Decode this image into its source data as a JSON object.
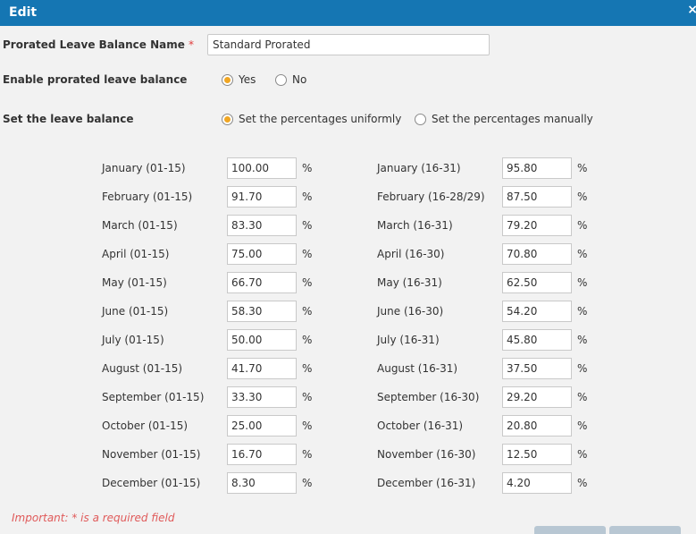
{
  "dialog": {
    "title": "Edit",
    "close_glyph": "×"
  },
  "form": {
    "name_label": "Prorated Leave Balance Name",
    "required_mark": "*",
    "name_value": "Standard Prorated",
    "enable_label": "Enable prorated leave balance",
    "enable_options": {
      "yes": "Yes",
      "no": "No",
      "selected": "yes"
    },
    "set_label": "Set the leave balance",
    "set_options": {
      "uniform": "Set the percentages uniformly",
      "manual": "Set the percentages manually",
      "selected": "uniform"
    }
  },
  "percent_symbol": "%",
  "rows": [
    {
      "left_label": "January (01-15)",
      "left_value": "100.00",
      "right_label": "January (16-31)",
      "right_value": "95.80"
    },
    {
      "left_label": "February (01-15)",
      "left_value": "91.70",
      "right_label": "February (16-28/29)",
      "right_value": "87.50"
    },
    {
      "left_label": "March (01-15)",
      "left_value": "83.30",
      "right_label": "March (16-31)",
      "right_value": "79.20"
    },
    {
      "left_label": "April (01-15)",
      "left_value": "75.00",
      "right_label": "April (16-30)",
      "right_value": "70.80"
    },
    {
      "left_label": "May (01-15)",
      "left_value": "66.70",
      "right_label": "May (16-31)",
      "right_value": "62.50"
    },
    {
      "left_label": "June (01-15)",
      "left_value": "58.30",
      "right_label": "June (16-30)",
      "right_value": "54.20"
    },
    {
      "left_label": "July (01-15)",
      "left_value": "50.00",
      "right_label": "July (16-31)",
      "right_value": "45.80"
    },
    {
      "left_label": "August (01-15)",
      "left_value": "41.70",
      "right_label": "August (16-31)",
      "right_value": "37.50"
    },
    {
      "left_label": "September (01-15)",
      "left_value": "33.30",
      "right_label": "September (16-30)",
      "right_value": "29.20"
    },
    {
      "left_label": "October (01-15)",
      "left_value": "25.00",
      "right_label": "October (16-31)",
      "right_value": "20.80"
    },
    {
      "left_label": "November (01-15)",
      "left_value": "16.70",
      "right_label": "November (16-30)",
      "right_value": "12.50"
    },
    {
      "left_label": "December (01-15)",
      "left_value": "8.30",
      "right_label": "December (16-31)",
      "right_value": "4.20"
    }
  ],
  "footer": {
    "note": "Important: * is a required field"
  },
  "colors": {
    "title_bar": "#1576b3",
    "radio_selected": "#f0a623",
    "required": "#e05a5a",
    "background": "#f2f2f2"
  }
}
